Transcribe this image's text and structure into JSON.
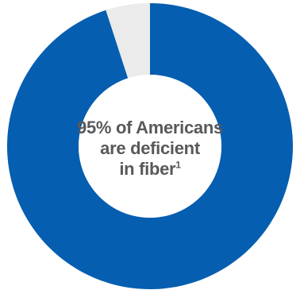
{
  "chart_data": {
    "type": "pie",
    "style": "donut",
    "slices": [
      {
        "value": 95,
        "color": "#055eb0"
      },
      {
        "value": 5,
        "color": "#ebebeb"
      }
    ],
    "annotation": {
      "lines": [
        "95% of Americans",
        "are deficient",
        "in fiber"
      ],
      "footnote_marker": "1"
    },
    "text_color": "#58595b"
  }
}
